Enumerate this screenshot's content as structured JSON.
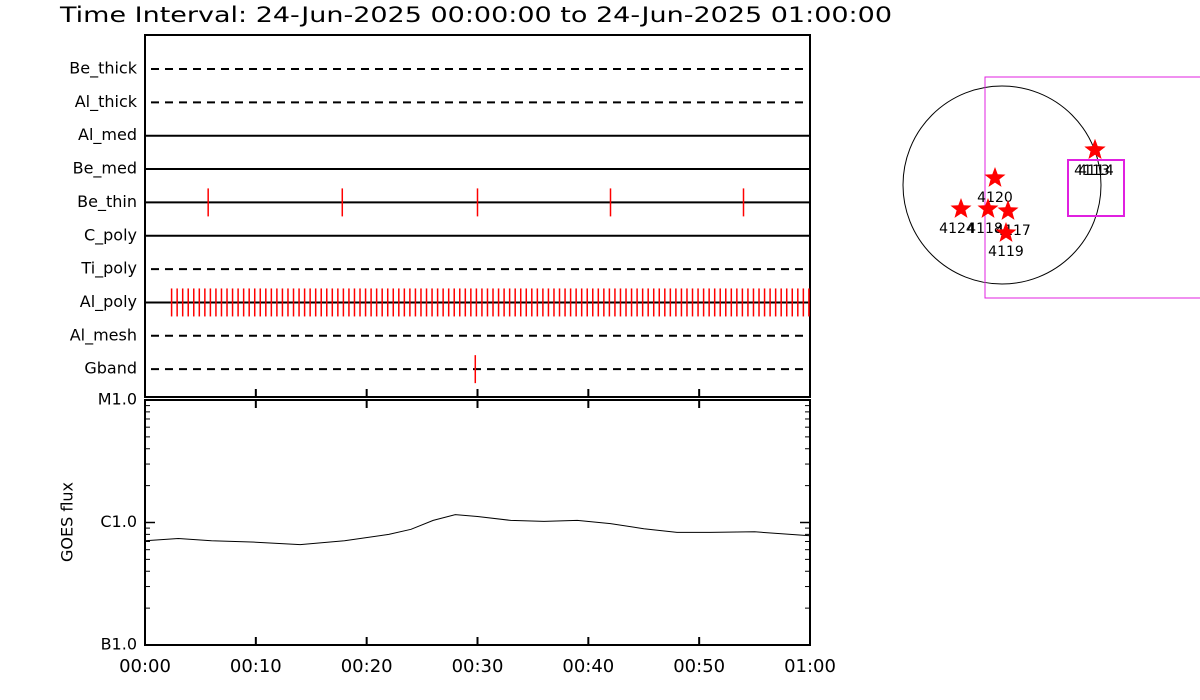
{
  "chart_data": [
    {
      "type": "timeline",
      "title": "Time Interval: 24-Jun-2025 00:00:00 to 24-Jun-2025 01:00:00",
      "categories": [
        "Be_thick",
        "Al_thick",
        "Al_med",
        "Be_med",
        "Be_thin",
        "C_poly",
        "Ti_poly",
        "Al_poly",
        "Al_mesh",
        "Gband"
      ],
      "line_styles": [
        "dashed",
        "dashed",
        "solid",
        "solid",
        "solid",
        "solid",
        "dashed",
        "solid",
        "dashed",
        "dashed"
      ],
      "events": [
        [],
        [],
        [],
        [],
        [
          5.7,
          17.8,
          30.0,
          42.0,
          54.0
        ],
        [],
        [],
        [
          2.4,
          2.9,
          3.4,
          3.9,
          4.4,
          4.9,
          5.4,
          5.9,
          6.4,
          6.9,
          7.4,
          7.9,
          8.4,
          8.9,
          9.4,
          9.9,
          10.4,
          10.9,
          11.4,
          11.9,
          12.4,
          12.9,
          13.4,
          13.9,
          14.4,
          14.9,
          15.4,
          15.9,
          16.4,
          16.9,
          17.4,
          17.9,
          18.4,
          18.9,
          19.4,
          19.9,
          20.4,
          20.9,
          21.4,
          21.9,
          22.4,
          22.9,
          23.4,
          23.9,
          24.4,
          24.9,
          25.4,
          25.9,
          26.4,
          26.9,
          27.4,
          27.9,
          28.4,
          28.9,
          29.4,
          29.9,
          30.4,
          30.9,
          31.4,
          31.9,
          32.4,
          32.9,
          33.4,
          33.9,
          34.4,
          34.9,
          35.4,
          35.9,
          36.4,
          36.9,
          37.4,
          37.9,
          38.4,
          38.9,
          39.4,
          39.9,
          40.4,
          40.9,
          41.4,
          41.9,
          42.4,
          42.9,
          43.4,
          43.9,
          44.4,
          44.9,
          45.4,
          45.9,
          46.4,
          46.9,
          47.4,
          47.9,
          48.4,
          48.9,
          49.4,
          49.9,
          50.4,
          50.9,
          51.4,
          51.9,
          52.4,
          52.9,
          53.4,
          53.9,
          54.4,
          54.9,
          55.4,
          55.9,
          56.4,
          56.9,
          57.4,
          57.9,
          58.4,
          58.9,
          59.4,
          59.9
        ],
        [],
        [
          29.8
        ]
      ],
      "color": "#ff0000",
      "xlim": [
        0,
        60
      ],
      "xticks": [
        {
          "value": 0,
          "label": "00:00"
        },
        {
          "value": 10,
          "label": "00:10"
        },
        {
          "value": 20,
          "label": "00:20"
        },
        {
          "value": 30,
          "label": "00:30"
        },
        {
          "value": 40,
          "label": "00:40"
        },
        {
          "value": 50,
          "label": "00:50"
        },
        {
          "value": 60,
          "label": "01:00"
        }
      ]
    },
    {
      "type": "line",
      "y_label": "GOES flux",
      "x": [
        0,
        3,
        6,
        10,
        14,
        18,
        22,
        24,
        26,
        28,
        30,
        33,
        36,
        39,
        42,
        45,
        48,
        51,
        55,
        60
      ],
      "values": [
        7.1e-07,
        7.4e-07,
        7.1e-07,
        6.9e-07,
        6.6e-07,
        7.1e-07,
        8e-07,
        8.8e-07,
        1.04e-06,
        1.16e-06,
        1.12e-06,
        1.04e-06,
        1.02e-06,
        1.04e-06,
        9.8e-07,
        8.9e-07,
        8.3e-07,
        8.3e-07,
        8.4e-07,
        7.8e-07
      ],
      "color": "#000000",
      "log_scale": true,
      "xlim": [
        0,
        60
      ],
      "xticks": [
        {
          "value": 0,
          "label": "00:00"
        },
        {
          "value": 10,
          "label": "00:10"
        },
        {
          "value": 20,
          "label": "00:20"
        },
        {
          "value": 30,
          "label": "00:30"
        },
        {
          "value": 40,
          "label": "00:40"
        },
        {
          "value": 50,
          "label": "00:50"
        },
        {
          "value": 60,
          "label": "01:00"
        }
      ],
      "ylim": [
        1e-07,
        1e-05
      ],
      "yticks": [
        {
          "value": 1e-07,
          "label": "B1.0"
        },
        {
          "value": 1e-06,
          "label": "C1.0"
        },
        {
          "value": 1e-05,
          "label": "M1.0"
        }
      ]
    }
  ],
  "map": {
    "labels": [
      "4113",
      "4114",
      "4120",
      "4124",
      "4118",
      "4117",
      "4119"
    ]
  }
}
